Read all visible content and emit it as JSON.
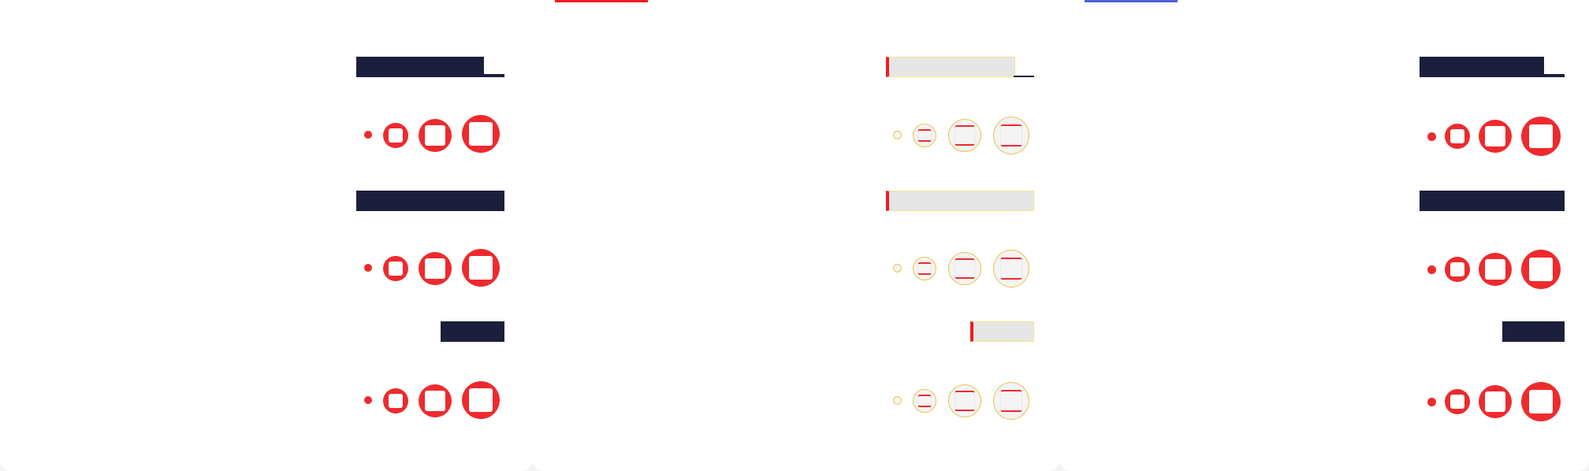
{
  "colors": {
    "background": "#f4f4f5",
    "panel": "#ffffff",
    "dark_bar": "#1c1f3c",
    "red": "#ee2a2d",
    "accent_red": "#ee1c24",
    "accent_blue": "#4a63d8"
  },
  "panels": [
    {
      "name": "panel-1",
      "rows": [
        {
          "label": "",
          "dots": [
            "size-xs",
            "size-sm",
            "size-md",
            "size-lg"
          ]
        },
        {
          "label": "",
          "dots": [
            "size-xs",
            "size-sm",
            "size-md",
            "size-lg"
          ]
        },
        {
          "label": "",
          "dots": [
            "size-xs",
            "size-sm",
            "size-md",
            "size-lg"
          ]
        }
      ]
    },
    {
      "name": "panel-2",
      "accent_color": "#ee1c24",
      "rows": [
        {
          "label": "",
          "dots": [
            "size-xs",
            "size-sm",
            "size-md",
            "size-lg"
          ]
        },
        {
          "label": "",
          "dots": [
            "size-xs",
            "size-sm",
            "size-md",
            "size-lg"
          ]
        },
        {
          "label": "",
          "dots": [
            "size-xs",
            "size-sm",
            "size-md",
            "size-lg"
          ]
        }
      ]
    },
    {
      "name": "panel-3",
      "accent_color": "#4a63d8",
      "rows": [
        {
          "label": "",
          "dots": [
            "size-xs",
            "size-sm",
            "size-md",
            "size-lg"
          ]
        },
        {
          "label": "",
          "dots": [
            "size-xs",
            "size-sm",
            "size-md",
            "size-lg"
          ]
        },
        {
          "label": "",
          "dots": [
            "size-xs",
            "size-sm",
            "size-md",
            "size-lg"
          ]
        }
      ]
    }
  ]
}
